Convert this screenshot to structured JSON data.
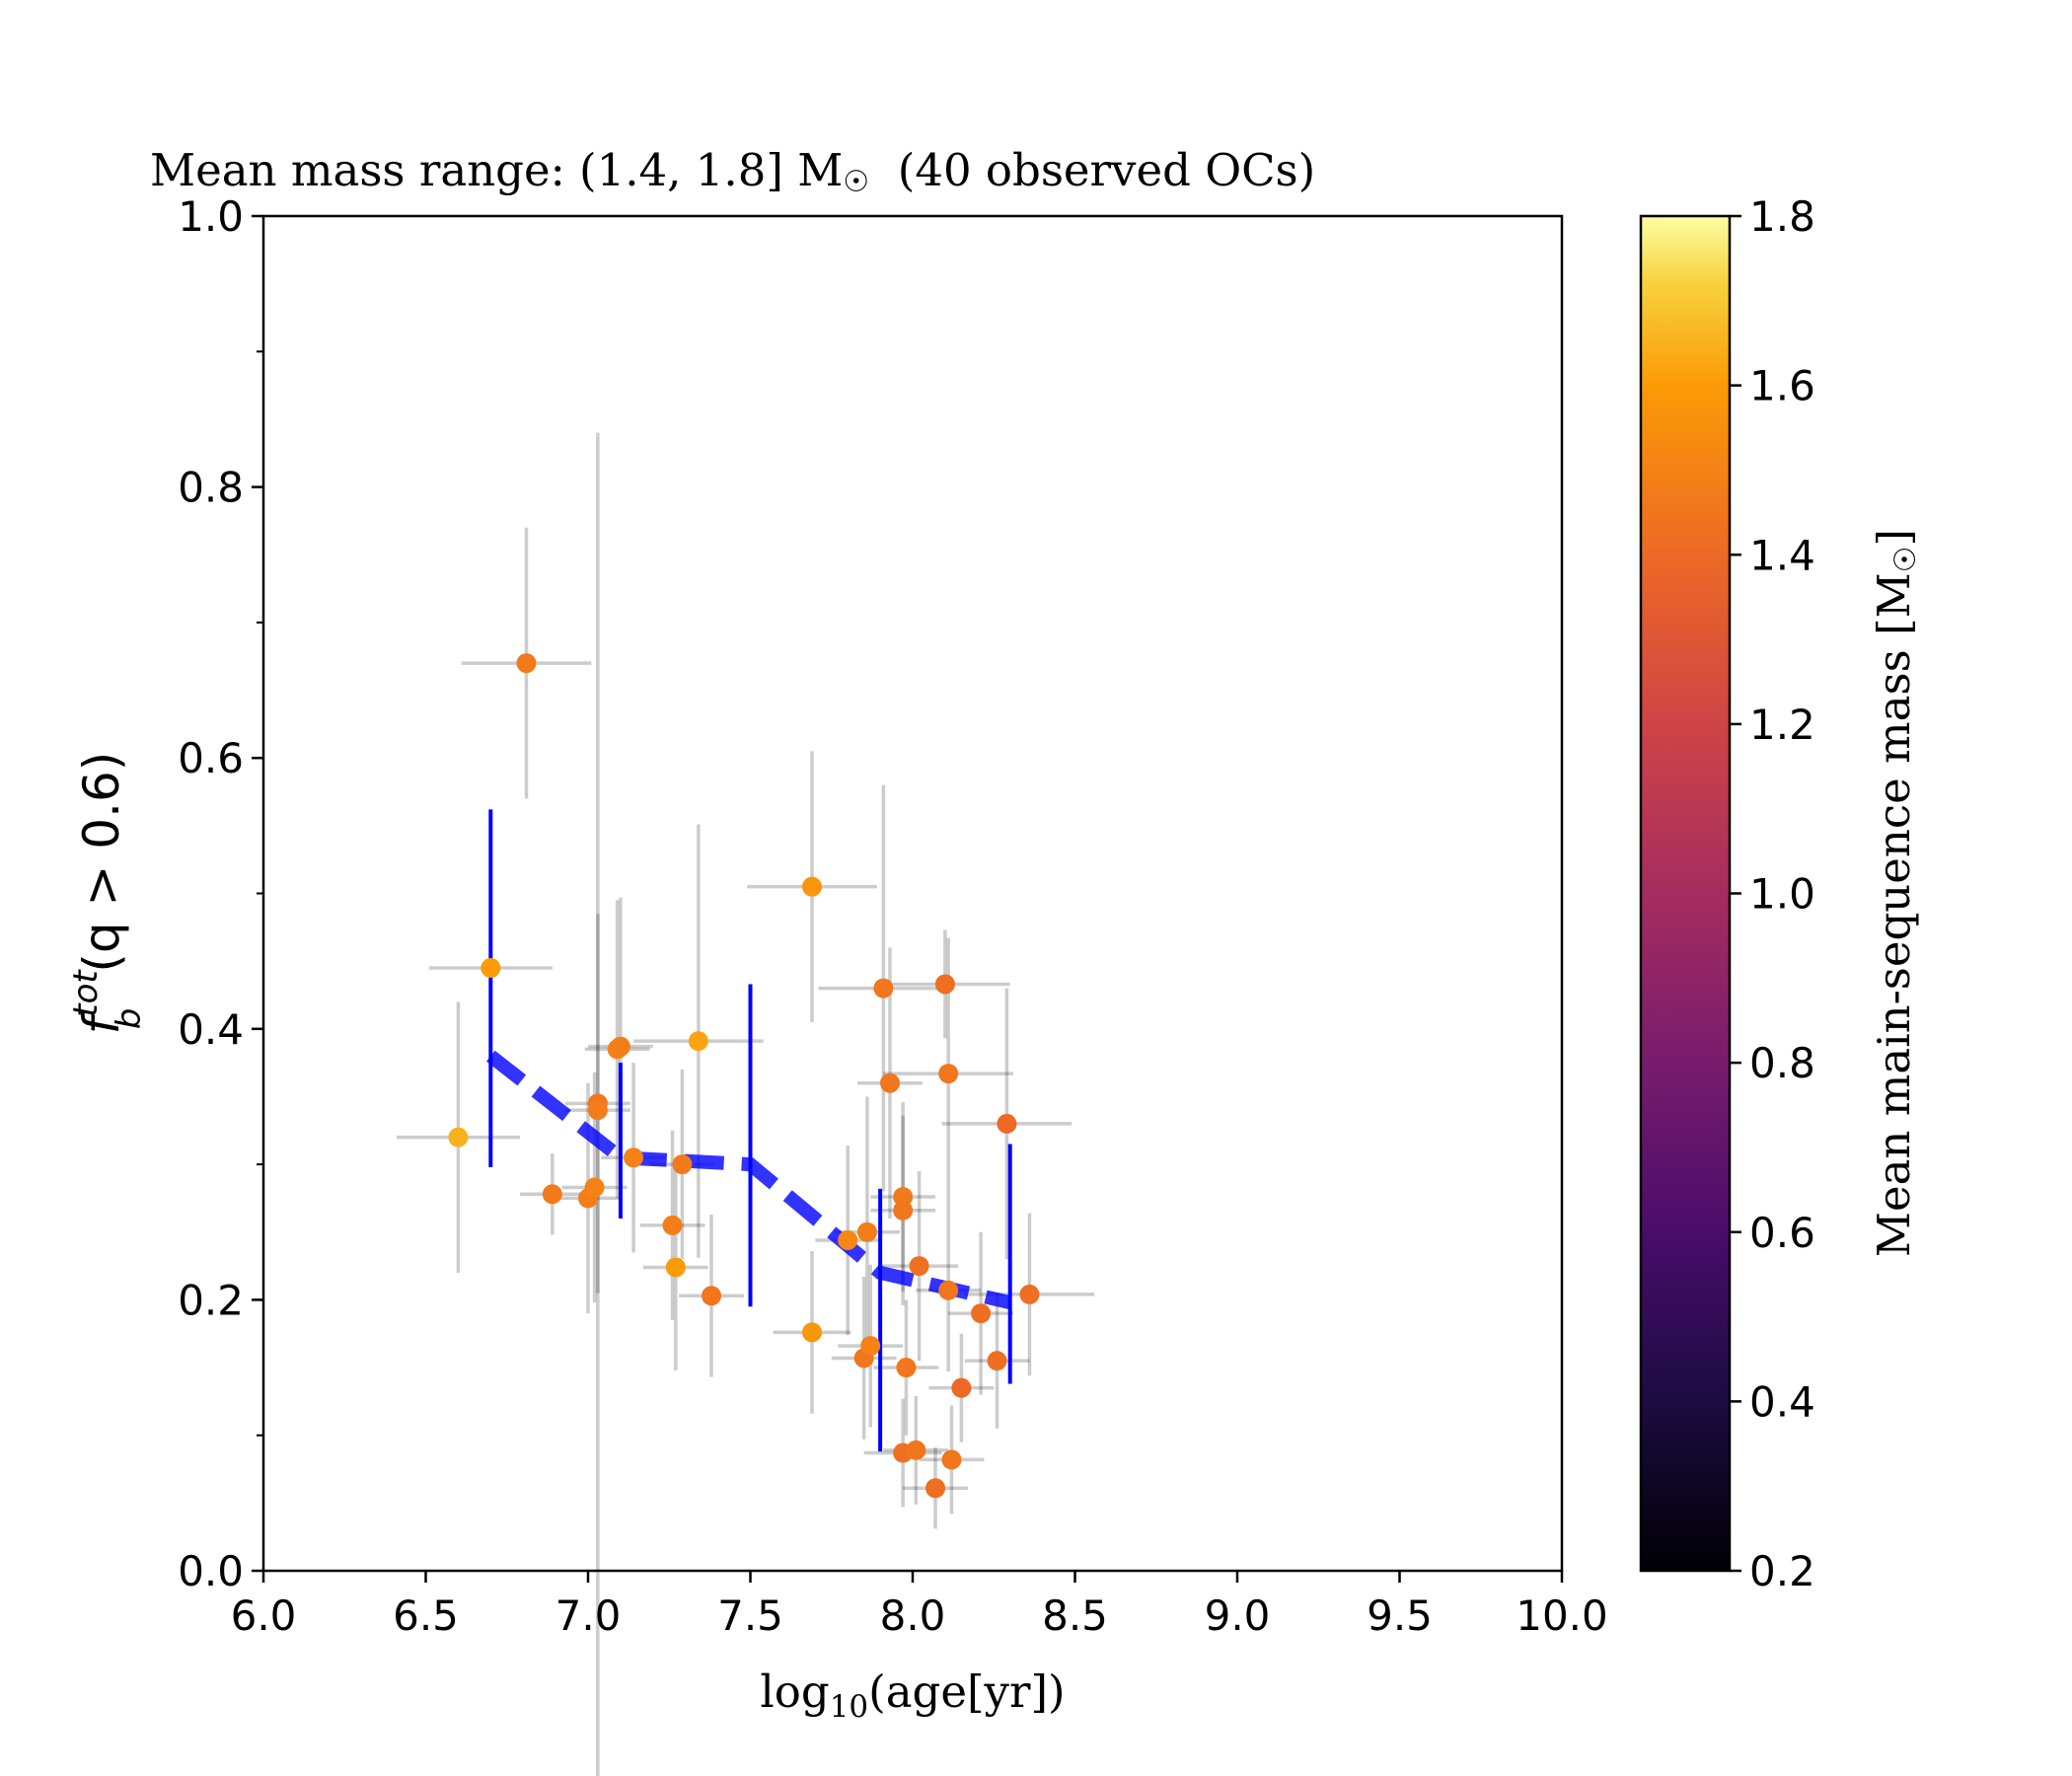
{
  "chart_data": {
    "type": "scatter",
    "title": "Mean mass range: (1.4, 1.8] M",
    "title_sun_symbol": "☉",
    "title_suffix": "  (40 observed OCs)",
    "xlabel_base": "log",
    "xlabel_sub": "10",
    "xlabel_rest": "(age[yr])",
    "ylabel_f": "f",
    "ylabel_sup": "tot",
    "ylabel_sub": "b",
    "ylabel_rest": "(q > 0.6)",
    "xlim": [
      6.0,
      10.0
    ],
    "ylim": [
      0.0,
      1.0
    ],
    "xticks": [
      "6.0",
      "6.5",
      "7.0",
      "7.5",
      "8.0",
      "8.5",
      "9.0",
      "9.5",
      "10.0"
    ],
    "yticks": [
      "0.0",
      "0.2",
      "0.4",
      "0.6",
      "0.8",
      "1.0"
    ],
    "grid": false,
    "colorbar": {
      "label": "Mean main-sequence mass [M",
      "label_sun_symbol": "☉",
      "label_end": "]",
      "colormap": "inferno",
      "range": [
        0.2,
        1.8
      ],
      "ticks": [
        "0.2",
        "0.4",
        "0.6",
        "0.8",
        "1.0",
        "1.2",
        "1.4",
        "1.6",
        "1.8"
      ]
    },
    "points": [
      {
        "x": 6.6,
        "y": 0.32,
        "xerr": 0.19,
        "yerr": 0.1,
        "mass": 1.65
      },
      {
        "x": 6.7,
        "y": 0.445,
        "xerr": 0.19,
        "yerr": 0.036,
        "mass": 1.6
      },
      {
        "x": 6.81,
        "y": 0.67,
        "xerr": 0.2,
        "yerr": 0.1,
        "mass": 1.47
      },
      {
        "x": 6.89,
        "y": 0.278,
        "xerr": 0.1,
        "yerr": 0.03,
        "mass": 1.47
      },
      {
        "x": 7.0,
        "y": 0.275,
        "xerr": 0.1,
        "yerr": 0.085,
        "mass": 1.48
      },
      {
        "x": 7.02,
        "y": 0.283,
        "xerr": 0.1,
        "yerr": 0.085,
        "mass": 1.5
      },
      {
        "x": 7.03,
        "y": 0.345,
        "xerr": 0.1,
        "yerr": 0.14,
        "mass": 1.45
      },
      {
        "x": 7.03,
        "y": 0.34,
        "xerr": 0.1,
        "yerr": 0.5,
        "mass": 1.48
      },
      {
        "x": 7.09,
        "y": 0.385,
        "xerr": 0.1,
        "yerr": 0.11,
        "mass": 1.5
      },
      {
        "x": 7.1,
        "y": 0.387,
        "xerr": 0.1,
        "yerr": 0.11,
        "mass": 1.48
      },
      {
        "x": 7.14,
        "y": 0.305,
        "xerr": 0.1,
        "yerr": 0.07,
        "mass": 1.5
      },
      {
        "x": 7.26,
        "y": 0.255,
        "xerr": 0.1,
        "yerr": 0.07,
        "mass": 1.48
      },
      {
        "x": 7.27,
        "y": 0.224,
        "xerr": 0.1,
        "yerr": 0.076,
        "mass": 1.6
      },
      {
        "x": 7.29,
        "y": 0.3,
        "xerr": 0.1,
        "yerr": 0.07,
        "mass": 1.47
      },
      {
        "x": 7.34,
        "y": 0.391,
        "xerr": 0.2,
        "yerr": 0.16,
        "mass": 1.62
      },
      {
        "x": 7.38,
        "y": 0.203,
        "xerr": 0.1,
        "yerr": 0.06,
        "mass": 1.45
      },
      {
        "x": 7.69,
        "y": 0.505,
        "xerr": 0.2,
        "yerr": 0.1,
        "mass": 1.58
      },
      {
        "x": 7.69,
        "y": 0.176,
        "xerr": 0.12,
        "yerr": 0.06,
        "mass": 1.58
      },
      {
        "x": 7.8,
        "y": 0.244,
        "xerr": 0.1,
        "yerr": 0.07,
        "mass": 1.52
      },
      {
        "x": 7.85,
        "y": 0.157,
        "xerr": 0.1,
        "yerr": 0.06,
        "mass": 1.45
      },
      {
        "x": 7.86,
        "y": 0.25,
        "xerr": 0.1,
        "yerr": 0.1,
        "mass": 1.48
      },
      {
        "x": 7.87,
        "y": 0.166,
        "xerr": 0.1,
        "yerr": 0.06,
        "mass": 1.5
      },
      {
        "x": 7.91,
        "y": 0.43,
        "xerr": 0.2,
        "yerr": 0.15,
        "mass": 1.45
      },
      {
        "x": 7.93,
        "y": 0.36,
        "xerr": 0.1,
        "yerr": 0.1,
        "mass": 1.45
      },
      {
        "x": 7.97,
        "y": 0.276,
        "xerr": 0.1,
        "yerr": 0.07,
        "mass": 1.47
      },
      {
        "x": 7.97,
        "y": 0.266,
        "xerr": 0.1,
        "yerr": 0.07,
        "mass": 1.45
      },
      {
        "x": 7.97,
        "y": 0.087,
        "xerr": 0.12,
        "yerr": 0.04,
        "mass": 1.43
      },
      {
        "x": 7.98,
        "y": 0.15,
        "xerr": 0.1,
        "yerr": 0.05,
        "mass": 1.45
      },
      {
        "x": 8.01,
        "y": 0.089,
        "xerr": 0.1,
        "yerr": 0.04,
        "mass": 1.45
      },
      {
        "x": 8.02,
        "y": 0.225,
        "xerr": 0.12,
        "yerr": 0.07,
        "mass": 1.43
      },
      {
        "x": 8.07,
        "y": 0.061,
        "xerr": 0.1,
        "yerr": 0.03,
        "mass": 1.42
      },
      {
        "x": 8.1,
        "y": 0.433,
        "xerr": 0.2,
        "yerr": 0.04,
        "mass": 1.42
      },
      {
        "x": 8.11,
        "y": 0.367,
        "xerr": 0.2,
        "yerr": 0.1,
        "mass": 1.45
      },
      {
        "x": 8.11,
        "y": 0.207,
        "xerr": 0.1,
        "yerr": 0.06,
        "mass": 1.45
      },
      {
        "x": 8.12,
        "y": 0.082,
        "xerr": 0.1,
        "yerr": 0.04,
        "mass": 1.45
      },
      {
        "x": 8.15,
        "y": 0.135,
        "xerr": 0.1,
        "yerr": 0.04,
        "mass": 1.4
      },
      {
        "x": 8.21,
        "y": 0.19,
        "xerr": 0.1,
        "yerr": 0.06,
        "mass": 1.42
      },
      {
        "x": 8.26,
        "y": 0.155,
        "xerr": 0.1,
        "yerr": 0.05,
        "mass": 1.42
      },
      {
        "x": 8.29,
        "y": 0.33,
        "xerr": 0.2,
        "yerr": 0.1,
        "mass": 1.4
      },
      {
        "x": 8.36,
        "y": 0.204,
        "xerr": 0.2,
        "yerr": 0.06,
        "mass": 1.42
      }
    ],
    "trend": {
      "color": "#0000ff",
      "x": [
        6.7,
        7.1,
        7.5,
        7.9,
        8.3
      ],
      "y": [
        0.38,
        0.305,
        0.3,
        0.22,
        0.198
      ],
      "err_low": [
        0.298,
        0.26,
        0.195,
        0.088,
        0.138
      ],
      "err_high": [
        0.562,
        0.375,
        0.433,
        0.282,
        0.315
      ]
    }
  }
}
